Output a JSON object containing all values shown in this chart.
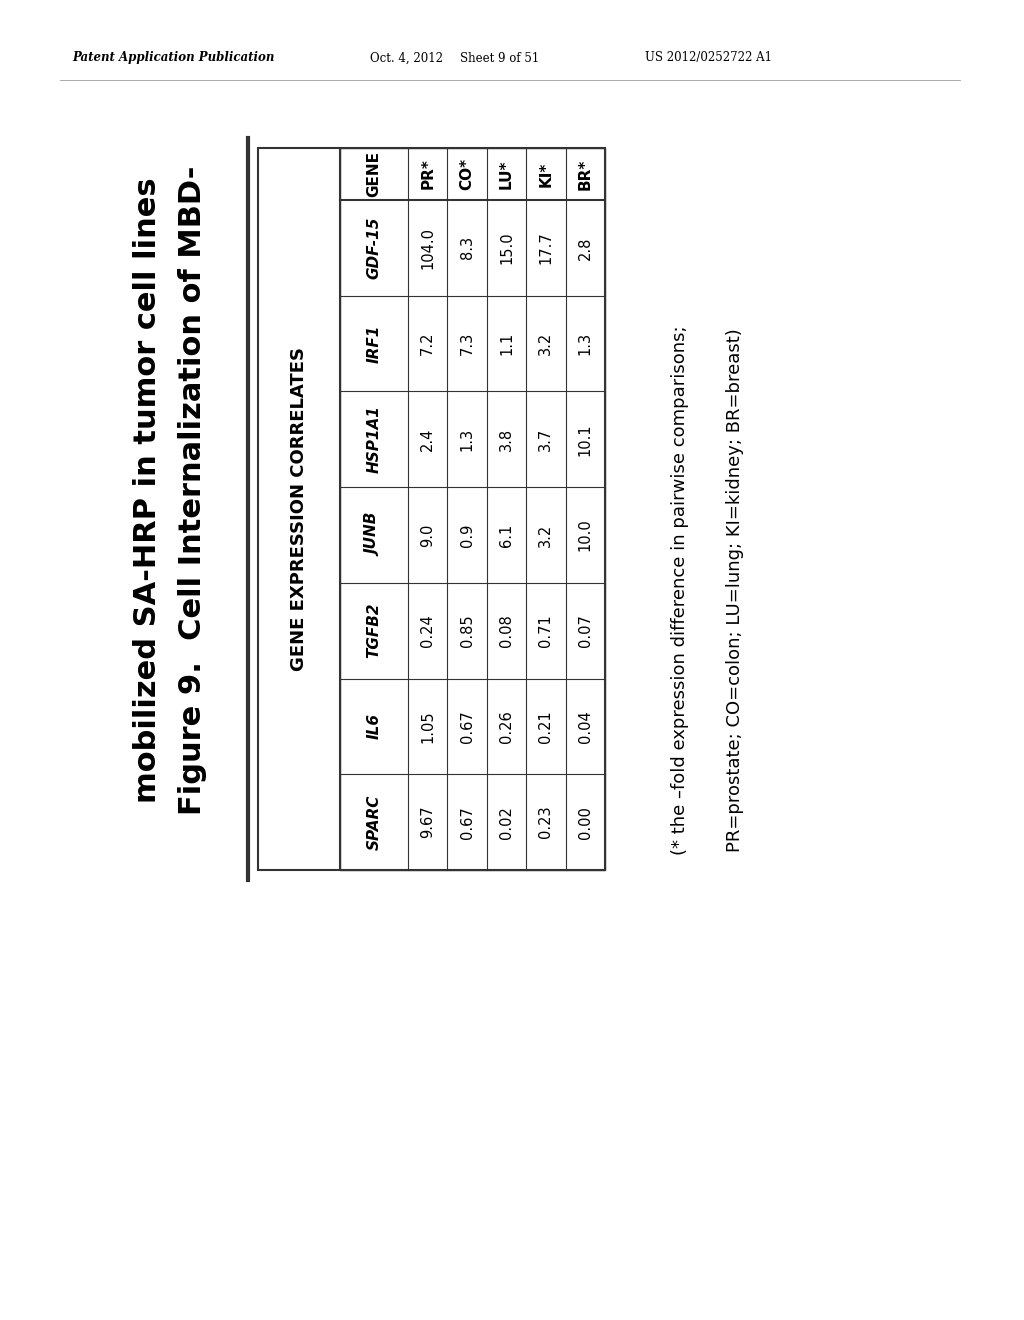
{
  "header_line1": "Patent Application Publication",
  "header_date": "Oct. 4, 2012",
  "header_sheet": "Sheet 9 of 51",
  "header_patent": "US 2012/0252722 A1",
  "figure_title_line1": "Figure 9.  Cell Internalization of MBD-",
  "figure_title_line2": "mobilized SA-HRP in tumor cell lines",
  "table_title": "GENE EXPRESSION CORRELATES",
  "columns": [
    "GENE",
    "PR*",
    "CO*",
    "LU*",
    "KI*",
    "BR*"
  ],
  "rows": [
    [
      "GDF-15",
      "104.0",
      "8.3",
      "15.0",
      "17.7",
      "2.8"
    ],
    [
      "IRF1",
      "7.2",
      "7.3",
      "1.1",
      "3.2",
      "1.3"
    ],
    [
      "HSP1A1",
      "2.4",
      "1.3",
      "3.8",
      "3.7",
      "10.1"
    ],
    [
      "JUNB",
      "9.0",
      "0.9",
      "6.1",
      "3.2",
      "10.0"
    ],
    [
      "TGFB2",
      "0.24",
      "0.85",
      "0.08",
      "0.71",
      "0.07"
    ],
    [
      "IL6",
      "1.05",
      "0.67",
      "0.26",
      "0.21",
      "0.04"
    ],
    [
      "SPARC",
      "9.67",
      "0.67",
      "0.02",
      "0.23",
      "0.00"
    ]
  ],
  "footnote_line1": "(* the –fold expression difference in pairwise comparisons;",
  "footnote_line2": "PR=prostate; CO=colon; LU=lung; KI=kidney; BR=breast)",
  "bg_color": "#ffffff",
  "text_color": "#000000",
  "line_color": "#555555"
}
